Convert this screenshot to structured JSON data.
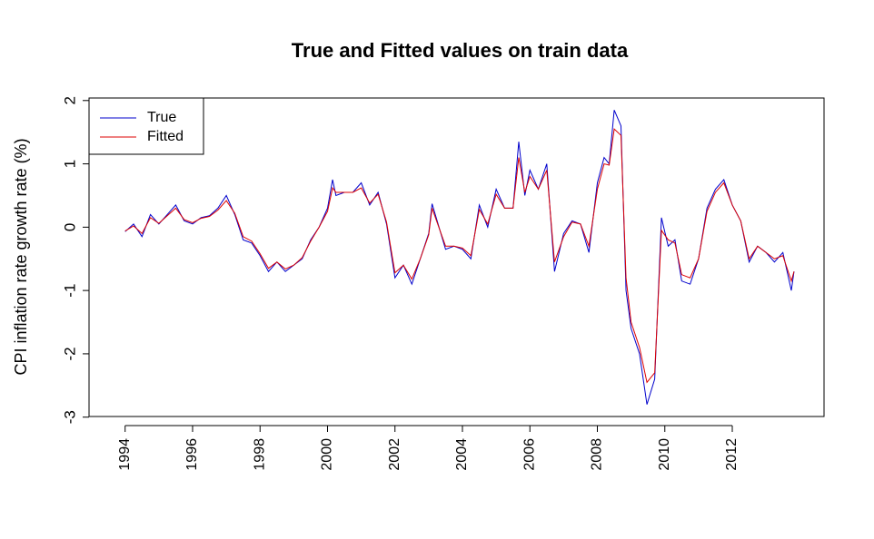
{
  "chart_data": {
    "type": "line",
    "title": "True and Fitted values on train data",
    "y_label": "CPI inflation rate growth rate (%)",
    "x": [
      1994.0,
      1994.25,
      1994.5,
      1994.75,
      1995.0,
      1995.25,
      1995.5,
      1995.75,
      1996.0,
      1996.25,
      1996.5,
      1996.75,
      1997.0,
      1997.25,
      1997.5,
      1997.75,
      1998.0,
      1998.25,
      1998.5,
      1998.75,
      1999.0,
      1999.25,
      1999.5,
      1999.75,
      2000.0,
      2000.15,
      2000.25,
      2000.5,
      2000.75,
      2001.0,
      2001.25,
      2001.5,
      2001.75,
      2002.0,
      2002.25,
      2002.5,
      2002.75,
      2003.0,
      2003.1,
      2003.5,
      2003.75,
      2004.0,
      2004.25,
      2004.5,
      2004.75,
      2005.0,
      2005.25,
      2005.5,
      2005.67,
      2005.85,
      2006.0,
      2006.25,
      2006.5,
      2006.73,
      2007.0,
      2007.25,
      2007.5,
      2007.75,
      2008.0,
      2008.2,
      2008.35,
      2008.5,
      2008.7,
      2008.85,
      2009.0,
      2009.25,
      2009.47,
      2009.7,
      2009.9,
      2010.1,
      2010.3,
      2010.5,
      2010.75,
      2011.0,
      2011.25,
      2011.5,
      2011.75,
      2012.0,
      2012.25,
      2012.5,
      2012.75,
      2013.0,
      2013.25,
      2013.5,
      2013.75,
      2013.83
    ],
    "series": [
      {
        "name": "True",
        "color": "#0000cc",
        "values": [
          -0.07,
          0.05,
          -0.15,
          0.2,
          0.05,
          0.2,
          0.35,
          0.1,
          0.05,
          0.15,
          0.18,
          0.3,
          0.5,
          0.2,
          -0.2,
          -0.25,
          -0.45,
          -0.7,
          -0.55,
          -0.7,
          -0.6,
          -0.5,
          -0.2,
          0.0,
          0.3,
          0.75,
          0.5,
          0.55,
          0.55,
          0.7,
          0.35,
          0.55,
          0.05,
          -0.8,
          -0.6,
          -0.9,
          -0.5,
          -0.1,
          0.37,
          -0.35,
          -0.3,
          -0.35,
          -0.5,
          0.35,
          0.0,
          0.6,
          0.3,
          0.3,
          1.35,
          0.5,
          0.9,
          0.6,
          1.0,
          -0.7,
          -0.1,
          0.1,
          0.05,
          -0.4,
          0.7,
          1.1,
          1.0,
          1.85,
          1.6,
          -1.0,
          -1.6,
          -2.0,
          -2.8,
          -2.4,
          0.15,
          -0.3,
          -0.2,
          -0.85,
          -0.9,
          -0.5,
          0.3,
          0.6,
          0.75,
          0.35,
          0.1,
          -0.55,
          -0.3,
          -0.4,
          -0.55,
          -0.4,
          -1.0,
          -0.7
        ]
      },
      {
        "name": "Fitted",
        "color": "#dd0000",
        "values": [
          -0.06,
          0.02,
          -0.1,
          0.15,
          0.06,
          0.18,
          0.3,
          0.12,
          0.07,
          0.14,
          0.17,
          0.27,
          0.42,
          0.22,
          -0.15,
          -0.22,
          -0.42,
          -0.65,
          -0.55,
          -0.66,
          -0.6,
          -0.48,
          -0.22,
          0.0,
          0.25,
          0.62,
          0.55,
          0.55,
          0.55,
          0.62,
          0.38,
          0.52,
          0.08,
          -0.72,
          -0.6,
          -0.82,
          -0.5,
          -0.12,
          0.3,
          -0.3,
          -0.3,
          -0.33,
          -0.45,
          0.28,
          0.05,
          0.52,
          0.3,
          0.3,
          1.1,
          0.55,
          0.8,
          0.6,
          0.9,
          -0.55,
          -0.15,
          0.08,
          0.05,
          -0.3,
          0.6,
          1.0,
          0.98,
          1.55,
          1.45,
          -0.8,
          -1.5,
          -1.9,
          -2.45,
          -2.3,
          -0.05,
          -0.2,
          -0.25,
          -0.75,
          -0.8,
          -0.5,
          0.25,
          0.55,
          0.7,
          0.35,
          0.1,
          -0.5,
          -0.3,
          -0.4,
          -0.5,
          -0.45,
          -0.85,
          -0.7
        ]
      }
    ],
    "xlim": [
      1992.93,
      2014.72
    ],
    "ylim": [
      -2.99,
      2.04
    ],
    "xticks": [
      1994,
      1996,
      1998,
      2000,
      2002,
      2004,
      2006,
      2008,
      2010,
      2012
    ],
    "yticks": [
      -3,
      -2,
      -1,
      0,
      1,
      2
    ],
    "grid": false,
    "legend": "topleft"
  }
}
